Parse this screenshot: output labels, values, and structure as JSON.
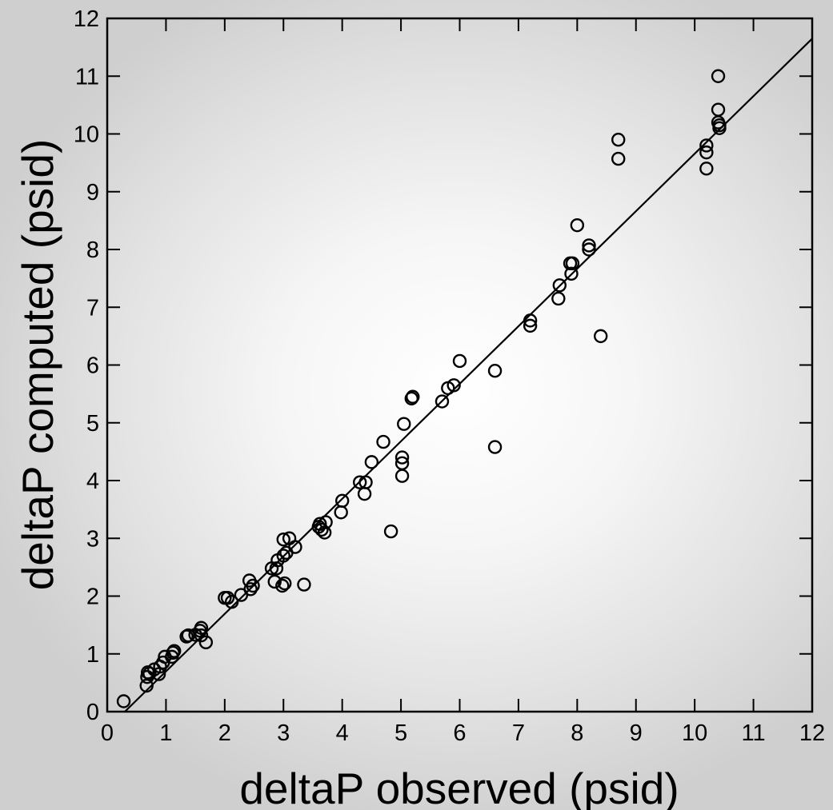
{
  "chart_data": {
    "type": "scatter",
    "title": "",
    "xlabel": "deltaP observed (psid)",
    "ylabel": "deltaP computed (psid)",
    "xlim": [
      0,
      12
    ],
    "ylim": [
      0,
      12
    ],
    "xticks": [
      "0",
      "1",
      "2",
      "3",
      "4",
      "5",
      "6",
      "7",
      "8",
      "9",
      "10",
      "11",
      "12"
    ],
    "yticks": [
      "0",
      "1",
      "2",
      "3",
      "4",
      "5",
      "6",
      "7",
      "8",
      "9",
      "10",
      "11",
      "12"
    ],
    "grid": false,
    "marker": "open-circle",
    "line_color": "#000000",
    "fit_line": {
      "from": [
        0.3,
        0
      ],
      "to": [
        12,
        11.65
      ]
    },
    "points": [
      [
        0.28,
        0.18
      ],
      [
        0.67,
        0.45
      ],
      [
        0.68,
        0.6
      ],
      [
        0.69,
        0.68
      ],
      [
        0.72,
        0.66
      ],
      [
        0.8,
        0.73
      ],
      [
        0.88,
        0.65
      ],
      [
        0.9,
        0.78
      ],
      [
        0.95,
        0.85
      ],
      [
        0.98,
        0.95
      ],
      [
        1.1,
        0.95
      ],
      [
        1.12,
        1.02
      ],
      [
        1.14,
        1.05
      ],
      [
        1.35,
        1.3
      ],
      [
        1.38,
        1.32
      ],
      [
        1.5,
        1.33
      ],
      [
        1.58,
        1.4
      ],
      [
        1.6,
        1.45
      ],
      [
        1.6,
        1.32
      ],
      [
        1.68,
        1.2
      ],
      [
        2.0,
        1.97
      ],
      [
        2.05,
        1.97
      ],
      [
        2.12,
        1.9
      ],
      [
        2.28,
        2.02
      ],
      [
        2.42,
        2.27
      ],
      [
        2.44,
        2.12
      ],
      [
        2.48,
        2.18
      ],
      [
        2.8,
        2.48
      ],
      [
        2.85,
        2.25
      ],
      [
        2.88,
        2.48
      ],
      [
        2.9,
        2.62
      ],
      [
        2.98,
        2.18
      ],
      [
        3.0,
        2.7
      ],
      [
        3.0,
        2.98
      ],
      [
        3.02,
        2.22
      ],
      [
        3.05,
        2.75
      ],
      [
        3.1,
        3.0
      ],
      [
        3.2,
        2.85
      ],
      [
        3.35,
        2.2
      ],
      [
        3.6,
        3.2
      ],
      [
        3.62,
        3.25
      ],
      [
        3.65,
        3.15
      ],
      [
        3.7,
        3.1
      ],
      [
        3.72,
        3.28
      ],
      [
        3.98,
        3.45
      ],
      [
        4.0,
        3.65
      ],
      [
        4.3,
        3.97
      ],
      [
        4.38,
        3.77
      ],
      [
        4.4,
        3.97
      ],
      [
        4.5,
        4.32
      ],
      [
        4.7,
        4.67
      ],
      [
        4.83,
        3.12
      ],
      [
        5.02,
        4.4
      ],
      [
        5.02,
        4.3
      ],
      [
        5.02,
        4.08
      ],
      [
        5.05,
        4.98
      ],
      [
        5.18,
        5.42
      ],
      [
        5.2,
        5.45
      ],
      [
        5.7,
        5.37
      ],
      [
        5.8,
        5.6
      ],
      [
        5.9,
        5.65
      ],
      [
        6.0,
        6.07
      ],
      [
        6.6,
        5.9
      ],
      [
        6.6,
        4.58
      ],
      [
        7.2,
        6.68
      ],
      [
        7.2,
        6.77
      ],
      [
        7.68,
        7.15
      ],
      [
        7.7,
        7.38
      ],
      [
        7.88,
        7.76
      ],
      [
        7.9,
        7.58
      ],
      [
        7.92,
        7.76
      ],
      [
        8.0,
        8.42
      ],
      [
        8.2,
        8.0
      ],
      [
        8.2,
        8.07
      ],
      [
        8.4,
        6.5
      ],
      [
        8.7,
        9.9
      ],
      [
        8.7,
        9.57
      ],
      [
        10.2,
        9.8
      ],
      [
        10.2,
        9.68
      ],
      [
        10.2,
        9.4
      ],
      [
        10.4,
        11.0
      ],
      [
        10.4,
        10.42
      ],
      [
        10.4,
        10.2
      ],
      [
        10.42,
        10.1
      ],
      [
        10.42,
        10.15
      ]
    ]
  }
}
